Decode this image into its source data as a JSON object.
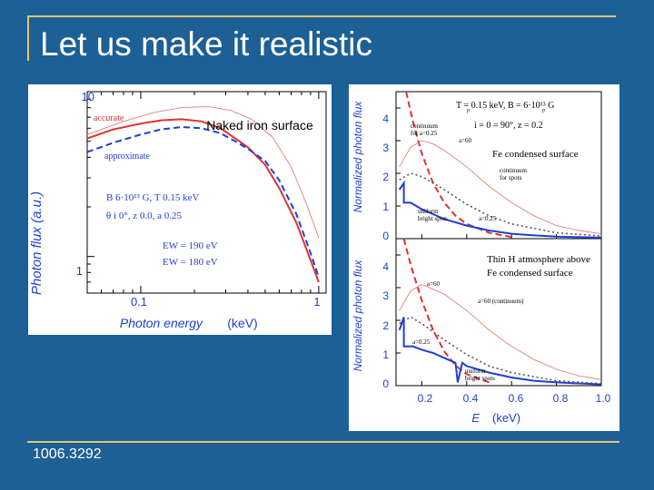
{
  "slide": {
    "title": "Let us make it realistic",
    "footer": "1006.3292",
    "colors": {
      "background": "#1d6096",
      "accent_line": "#e9c46a"
    }
  },
  "left_figure": {
    "overlay_label": "Naked iron surface",
    "curve_labels": {
      "accurate": "accurate",
      "approximate": "approximate"
    },
    "params_line1": "B   6·10¹³ G,  T    0.15 keV",
    "params_line2": "θ    i   0°,  z   0.0,  a   0.25",
    "ew_line1": "EW    = 190 eV",
    "ew_line2": "EW    = 180 eV",
    "chart_data": {
      "type": "line",
      "xlabel": "Photon energy",
      "xlabel_unit": "(keV)",
      "ylabel": "Photon flux  (a.u.)",
      "x_ticks": [
        "0.1",
        "1"
      ],
      "y_ticks": [
        "10",
        "1"
      ],
      "xscale": "log",
      "yscale": "log",
      "xlim": [
        0.05,
        1.1
      ],
      "ylim": [
        0.6,
        10
      ],
      "series": [
        {
          "name": "accurate",
          "color": "#e03030",
          "style": "solid",
          "x": [
            0.05,
            0.07,
            0.1,
            0.13,
            0.17,
            0.22,
            0.28,
            0.34,
            0.4,
            0.5,
            0.6,
            0.75,
            0.9,
            1.0
          ],
          "y": [
            5.2,
            5.9,
            6.4,
            6.7,
            6.8,
            6.6,
            6.0,
            5.2,
            4.6,
            3.6,
            2.6,
            1.6,
            0.95,
            0.7
          ]
        },
        {
          "name": "approximate",
          "color": "#1f3fd0",
          "style": "dashed",
          "x": [
            0.05,
            0.07,
            0.1,
            0.13,
            0.17,
            0.22,
            0.28,
            0.34,
            0.4,
            0.5,
            0.6,
            0.75,
            0.9,
            1.0
          ],
          "y": [
            4.3,
            4.9,
            5.5,
            5.9,
            6.1,
            6.0,
            5.6,
            5.0,
            4.5,
            3.8,
            2.9,
            1.8,
            1.05,
            0.75
          ]
        },
        {
          "name": "",
          "color": "#e08080",
          "style": "thin",
          "x": [
            0.05,
            0.08,
            0.12,
            0.17,
            0.24,
            0.32,
            0.42,
            0.55,
            0.7,
            0.85,
            1.0
          ],
          "y": [
            5.5,
            6.6,
            7.5,
            8.0,
            8.1,
            7.7,
            6.8,
            5.3,
            3.5,
            2.1,
            1.3
          ]
        }
      ]
    }
  },
  "right_figure": {
    "top_panel": {
      "params_line1": "T  = 0.15 keV,  B  = 6·10¹³ G",
      "params_line2": "i = 0  = 90°,  z = 0.2",
      "params_sub1": "p",
      "params_sub2": "p",
      "label_continuum": "continuum",
      "label_continuum2": "for a=0.25",
      "label_a60": "a=60",
      "label_surface": "Fe condensed surface",
      "label_hot_spots1": "continuum",
      "label_hot_spots2": "for spots",
      "label_uniform1": "uniform",
      "label_uniform2": "bright spots",
      "label_a025": "a=0.25",
      "y_ticks": [
        "4",
        "3",
        "2",
        "1",
        "0"
      ]
    },
    "bottom_panel": {
      "label_line1": "Thin H atmosphere above",
      "label_line2": "Fe condensed surface",
      "label_a60": "a=60",
      "label_a60_continuum": "a=60 (continuum)",
      "label_a025": "a=0.25",
      "label_uniform1": "uniform",
      "label_uniform2": "bright spots",
      "y_ticks": [
        "4",
        "3",
        "2",
        "1",
        "0"
      ]
    },
    "ylabel": "Normalized photon flux",
    "xlabel": "E",
    "xlabel_unit": "(keV)",
    "chart_data": [
      {
        "type": "line",
        "panel": "top",
        "ylabel": "Normalized photon flux",
        "xlim": [
          0.1,
          1.0
        ],
        "ylim": [
          0,
          4.5
        ],
        "series": [
          {
            "name": "a=60",
            "color": "#e03030",
            "style": "dashed",
            "x": [
              0.13,
              0.16,
              0.2,
              0.25,
              0.3,
              0.35,
              0.4,
              0.5,
              0.6
            ],
            "y": [
              4.5,
              3.6,
              2.6,
              1.7,
              1.1,
              0.7,
              0.45,
              0.18,
              0.05
            ]
          },
          {
            "name": "continuum for a=0.25",
            "color": "#e08080",
            "style": "thin",
            "x": [
              0.1,
              0.15,
              0.2,
              0.25,
              0.3,
              0.4,
              0.5,
              0.6,
              0.7,
              0.8,
              0.9,
              1.0
            ],
            "y": [
              2.2,
              2.8,
              3.0,
              2.9,
              2.7,
              2.2,
              1.6,
              1.1,
              0.7,
              0.4,
              0.25,
              0.15
            ]
          },
          {
            "name": "uniform bright spots",
            "color": "#1f3fd0",
            "style": "solid",
            "x": [
              0.1,
              0.12,
              0.12,
              0.15,
              0.2,
              0.25,
              0.3,
              0.4,
              0.5,
              0.6,
              0.7,
              0.8,
              1.0
            ],
            "y": [
              1.5,
              1.7,
              1.1,
              1.1,
              0.9,
              0.75,
              0.6,
              0.4,
              0.25,
              0.15,
              0.1,
              0.06,
              0.03
            ]
          },
          {
            "name": "continuum for spots",
            "color": "#555555",
            "style": "dotted",
            "x": [
              0.1,
              0.15,
              0.2,
              0.25,
              0.3,
              0.4,
              0.5,
              0.6,
              0.8,
              1.0
            ],
            "y": [
              1.8,
              2.0,
              1.9,
              1.7,
              1.5,
              1.05,
              0.7,
              0.45,
              0.18,
              0.08
            ]
          }
        ]
      },
      {
        "type": "line",
        "panel": "bottom",
        "xlabel": "E",
        "xlabel_unit": "(keV)",
        "x_ticks": [
          "0.2",
          "0.4",
          "0.6",
          "0.8",
          "1.0"
        ],
        "xlim": [
          0.1,
          1.0
        ],
        "ylim": [
          0,
          4.5
        ],
        "series": [
          {
            "name": "a=60",
            "color": "#e03030",
            "style": "dashed",
            "x": [
              0.12,
              0.15,
              0.2,
              0.25,
              0.3,
              0.35,
              0.4,
              0.5
            ],
            "y": [
              4.5,
              3.7,
              2.6,
              1.7,
              1.05,
              0.62,
              0.35,
              0.1
            ]
          },
          {
            "name": "a=60 (continuum)",
            "color": "#e08080",
            "style": "thin",
            "x": [
              0.1,
              0.15,
              0.2,
              0.3,
              0.4,
              0.5,
              0.6,
              0.7,
              0.8,
              0.9,
              1.0
            ],
            "y": [
              2.3,
              2.9,
              3.1,
              2.8,
              2.3,
              1.7,
              1.2,
              0.8,
              0.5,
              0.3,
              0.18
            ]
          },
          {
            "name": "a=0.25",
            "color": "#1f3fd0",
            "style": "solid",
            "x": [
              0.1,
              0.12,
              0.12,
              0.16,
              0.2,
              0.25,
              0.3,
              0.35,
              0.36,
              0.38,
              0.4,
              0.5,
              0.6,
              0.7,
              0.8,
              1.0
            ],
            "y": [
              1.7,
              2.1,
              1.2,
              1.2,
              1.1,
              1.0,
              0.85,
              0.7,
              0.1,
              0.7,
              0.6,
              0.4,
              0.25,
              0.15,
              0.1,
              0.04
            ]
          },
          {
            "name": "uniform bright spots",
            "color": "#555555",
            "style": "dotted",
            "x": [
              0.1,
              0.15,
              0.2,
              0.3,
              0.4,
              0.5,
              0.6,
              0.8,
              1.0
            ],
            "y": [
              1.9,
              2.1,
              1.9,
              1.4,
              0.95,
              0.6,
              0.4,
              0.15,
              0.06
            ]
          }
        ]
      }
    ]
  }
}
